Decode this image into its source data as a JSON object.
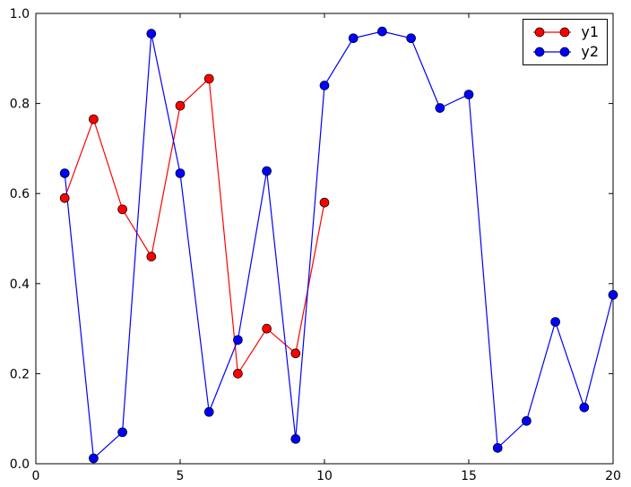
{
  "chart_data": {
    "type": "line",
    "title": "",
    "xlabel": "",
    "ylabel": "",
    "xlim": [
      0,
      20
    ],
    "ylim": [
      0.0,
      1.0
    ],
    "xticks": [
      0,
      5,
      10,
      15,
      20
    ],
    "xtick_labels": [
      "0",
      "5",
      "10",
      "15",
      "20"
    ],
    "yticks": [
      0.0,
      0.2,
      0.4,
      0.6,
      0.8,
      1.0
    ],
    "ytick_labels": [
      "0.0",
      "0.2",
      "0.4",
      "0.6",
      "0.8",
      "1.0"
    ],
    "grid": false,
    "legend": {
      "position": "upper right"
    },
    "background": "#ffffff",
    "frame_color": "#000000",
    "series": [
      {
        "name": "y1",
        "color": "#ff0000",
        "marker": "circle",
        "x": [
          1,
          2,
          3,
          4,
          5,
          6,
          7,
          8,
          9,
          10
        ],
        "y": [
          0.59,
          0.765,
          0.565,
          0.46,
          0.795,
          0.855,
          0.2,
          0.3,
          0.245,
          0.58
        ]
      },
      {
        "name": "y2",
        "color": "#0000ff",
        "marker": "circle",
        "x": [
          1,
          2,
          3,
          4,
          5,
          6,
          7,
          8,
          9,
          10,
          11,
          12,
          13,
          14,
          15,
          16,
          17,
          18,
          19,
          20
        ],
        "y": [
          0.645,
          0.012,
          0.07,
          0.955,
          0.645,
          0.115,
          0.275,
          0.65,
          0.055,
          0.84,
          0.945,
          0.96,
          0.945,
          0.79,
          0.82,
          0.035,
          0.095,
          0.315,
          0.125,
          0.375
        ]
      }
    ]
  }
}
